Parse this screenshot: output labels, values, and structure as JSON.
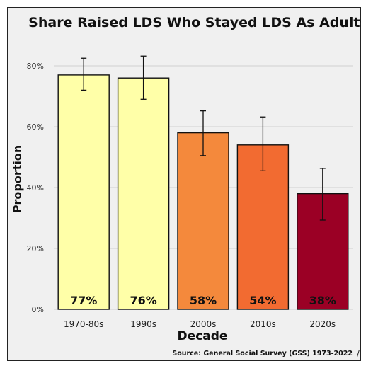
{
  "chart_data": {
    "type": "bar",
    "title": "Share Raised LDS Who Stayed LDS As Adults",
    "xlabel": "Decade",
    "ylabel": "Proportion",
    "categories": [
      "1970-80s",
      "1990s",
      "2000s",
      "2010s",
      "2020s"
    ],
    "values": [
      0.77,
      0.76,
      0.58,
      0.54,
      0.38
    ],
    "error_low": [
      0.72,
      0.69,
      0.505,
      0.455,
      0.293
    ],
    "error_high": [
      0.825,
      0.832,
      0.652,
      0.632,
      0.463
    ],
    "data_labels": [
      "77%",
      "76%",
      "58%",
      "54%",
      "38%"
    ],
    "bar_colors": [
      "#ffffa8",
      "#ffffa8",
      "#f4893c",
      "#f26b31",
      "#9b0025"
    ],
    "ylim": [
      0,
      0.9
    ],
    "yticks": [
      0,
      0.2,
      0.4,
      0.6,
      0.8
    ],
    "ytick_labels": [
      "0%",
      "20%",
      "40%",
      "60%",
      "80%"
    ],
    "grid": "horizontal",
    "caption": "Source: General Social Survey (GSS) 1973-2022"
  },
  "stray_mark": "/"
}
